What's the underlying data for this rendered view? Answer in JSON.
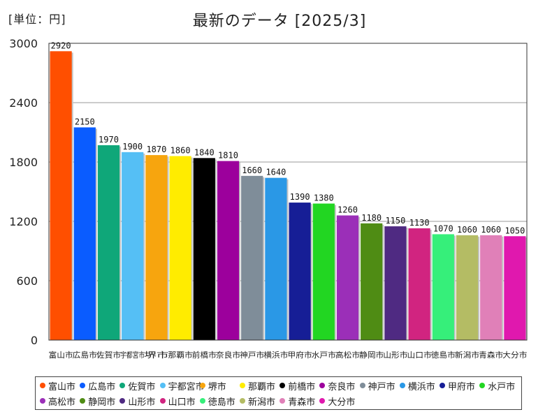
{
  "unit_label": "[単位：円]",
  "chart_data": {
    "type": "bar",
    "title": "最新のデータ [2025/3]",
    "xlabel": "",
    "ylabel": "",
    "ylim": [
      0,
      3000
    ],
    "yticks": [
      0,
      600,
      1200,
      1800,
      2400,
      3000
    ],
    "grid": true,
    "legend_placement": "bottom",
    "categories": [
      "富山市",
      "広島市",
      "佐賀市",
      "宇都宮市",
      "堺市",
      "那覇市",
      "前橋市",
      "奈良市",
      "神戸市",
      "横浜市",
      "甲府市",
      "水戸市",
      "高松市",
      "静岡市",
      "山形市",
      "山口市",
      "徳島市",
      "新潟市",
      "青森市",
      "大分市"
    ],
    "values": [
      2920,
      2150,
      1970,
      1900,
      1870,
      1860,
      1840,
      1810,
      1660,
      1640,
      1390,
      1380,
      1260,
      1180,
      1150,
      1130,
      1070,
      1060,
      1060,
      1050
    ],
    "colors": [
      "#ff4f00",
      "#0a5cff",
      "#0fa779",
      "#55bff5",
      "#f7a50e",
      "#ffec00",
      "#000000",
      "#9c009c",
      "#7f8d99",
      "#2a98e6",
      "#161e96",
      "#22d622",
      "#9b2fb8",
      "#4f8c14",
      "#4f2a82",
      "#d12480",
      "#36ef7a",
      "#b4bc64",
      "#e080b8",
      "#e018ae"
    ]
  }
}
